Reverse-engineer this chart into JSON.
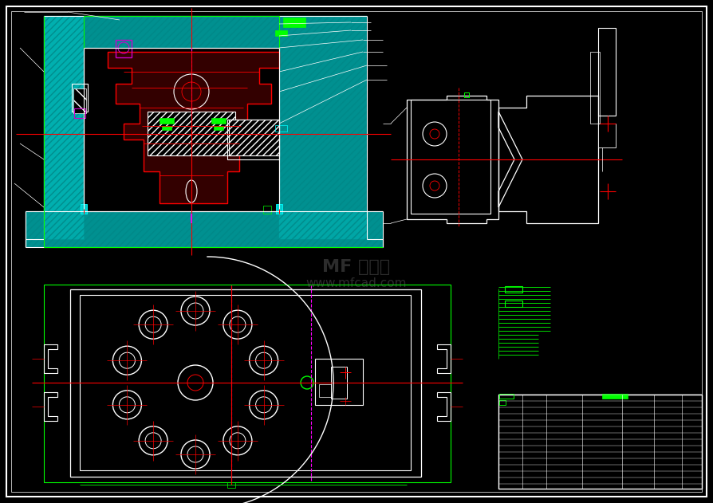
{
  "bg_color": "#000000",
  "white": "#ffffff",
  "cyan": "#00ffff",
  "red": "#ff0000",
  "green": "#00ff00",
  "magenta": "#ff00ff",
  "fig_width": 8.94,
  "fig_height": 6.31,
  "dpi": 100
}
